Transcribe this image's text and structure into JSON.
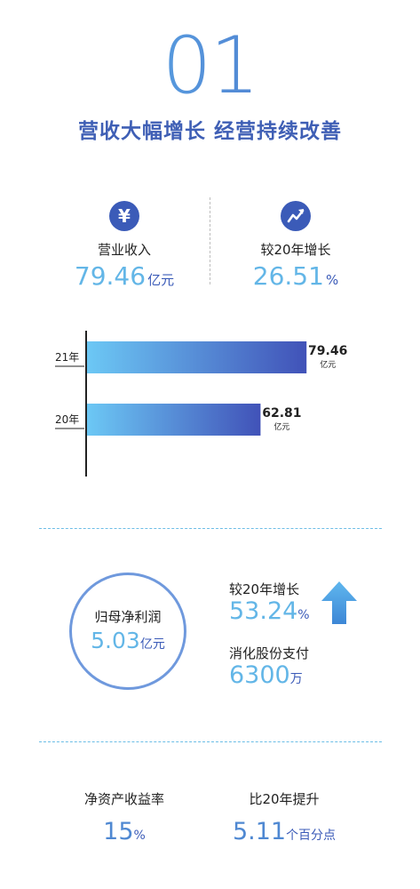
{
  "header": {
    "number": "01",
    "title": "营收大幅增长 经营持续改善"
  },
  "kpis": [
    {
      "icon": "yen-icon",
      "label": "营业收入",
      "value": "79.46",
      "unit": "亿元"
    },
    {
      "icon": "growth-chart-icon",
      "label": "较20年增长",
      "value": "26.51",
      "unit": "%"
    }
  ],
  "chart_data": {
    "type": "bar",
    "orientation": "horizontal",
    "categories": [
      "21年",
      "20年"
    ],
    "values": [
      79.46,
      62.81
    ],
    "value_labels": [
      "79.46",
      "62.81"
    ],
    "unit": "亿元",
    "xlim": [
      0,
      90
    ],
    "grid": false,
    "colors": [
      "#6cc8f5",
      "#4152b8"
    ]
  },
  "profit": {
    "label": "归母净利润",
    "value": "5.03",
    "unit": "亿元",
    "growth_label": "较20年增长",
    "growth_value": "53.24",
    "growth_unit": "%",
    "growth_icon": "up-arrow-icon",
    "share_label": "消化股份支付",
    "share_value": "6300",
    "share_unit": "万"
  },
  "roe": {
    "label": "净资产收益率",
    "value": "15",
    "unit": "%",
    "change_label": "比20年提升",
    "change_value": "5.11",
    "change_unit": "个百分点"
  },
  "colors": {
    "accent": "#3b5bb8",
    "light_blue": "#63b6e7",
    "divider": "#6cbde6"
  }
}
